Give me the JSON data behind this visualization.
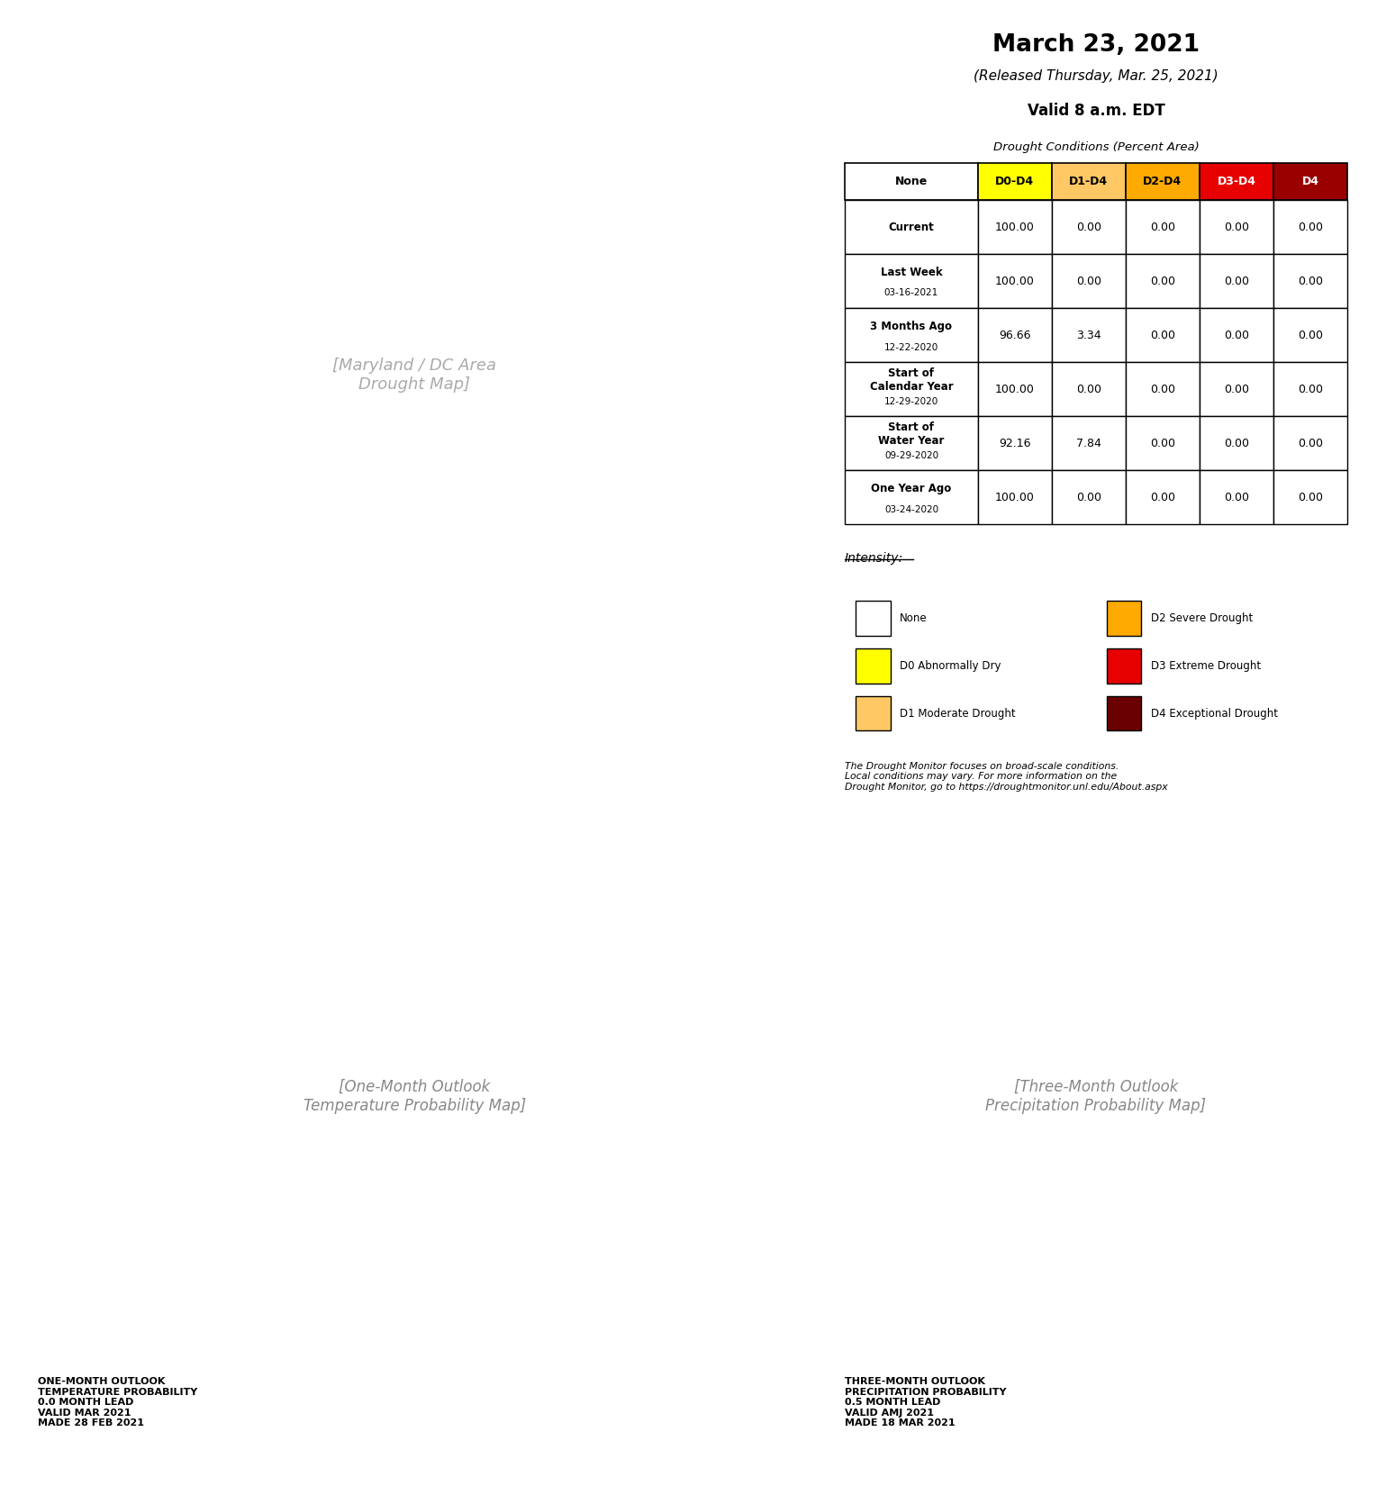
{
  "title": "March 23, 2021",
  "subtitle1": "(Released Thursday, Mar. 25, 2021)",
  "subtitle2": "Valid 8 a.m. EDT",
  "table_title": "Drought Conditions (Percent Area)",
  "col_headers": [
    "None",
    "D0-D4",
    "D1-D4",
    "D2-D4",
    "D3-D4",
    "D4"
  ],
  "col_header_colors": [
    "#ffffff",
    "#ffff00",
    "#ffc864",
    "#ffaa00",
    "#e60000",
    "#9b0000"
  ],
  "col_header_text_colors": [
    "#000000",
    "#000000",
    "#000000",
    "#000000",
    "#ffffff",
    "#ffffff"
  ],
  "rows": [
    {
      "label": "Current",
      "sublabel": "",
      "values": [
        "100.00",
        "0.00",
        "0.00",
        "0.00",
        "0.00",
        "0.00"
      ]
    },
    {
      "label": "Last Week",
      "sublabel": "03-16-2021",
      "values": [
        "100.00",
        "0.00",
        "0.00",
        "0.00",
        "0.00",
        "0.00"
      ]
    },
    {
      "label": "3 Months Ago",
      "sublabel": "12-22-2020",
      "values": [
        "96.66",
        "3.34",
        "0.00",
        "0.00",
        "0.00",
        "0.00"
      ]
    },
    {
      "label": "Start of\nCalendar Year",
      "sublabel": "12-29-2020",
      "values": [
        "100.00",
        "0.00",
        "0.00",
        "0.00",
        "0.00",
        "0.00"
      ]
    },
    {
      "label": "Start of\nWater Year",
      "sublabel": "09-29-2020",
      "values": [
        "92.16",
        "7.84",
        "0.00",
        "0.00",
        "0.00",
        "0.00"
      ]
    },
    {
      "label": "One Year Ago",
      "sublabel": "03-24-2020",
      "values": [
        "100.00",
        "0.00",
        "0.00",
        "0.00",
        "0.00",
        "0.00"
      ]
    }
  ],
  "intensity_legend": [
    {
      "label": "None",
      "color": "#ffffff",
      "edge": "#000000"
    },
    {
      "label": "D0 Abnormally Dry",
      "color": "#ffff00",
      "edge": "#000000"
    },
    {
      "label": "D1 Moderate Drought",
      "color": "#ffc864",
      "edge": "#000000"
    },
    {
      "label": "D2 Severe Drought",
      "color": "#ffaa00",
      "edge": "#000000"
    },
    {
      "label": "D3 Extreme Drought",
      "color": "#e60000",
      "edge": "#000000"
    },
    {
      "label": "D4 Exceptional Drought",
      "color": "#6b0000",
      "edge": "#000000"
    }
  ],
  "disclaimer": "The Drought Monitor focuses on broad-scale conditions.\nLocal conditions may vary. For more information on the\nDrought Monitor, go to https://droughtmonitor.unl.edu/About.aspx",
  "background_color": "#ffffff",
  "map1_label": "ONE-MONTH OUTLOOK\nTEMPERATURE PROBABILITY\n0.0 MONTH LEAD\nVALID MAR 2021\nMADE 28 FEB 2021",
  "map2_label": "THREE-MONTH OUTLOOK\nPRECIPITATION PROBABILITY\n0.5 MONTH LEAD\nVALID AMJ 2021\nMADE 18 MAR 2021"
}
